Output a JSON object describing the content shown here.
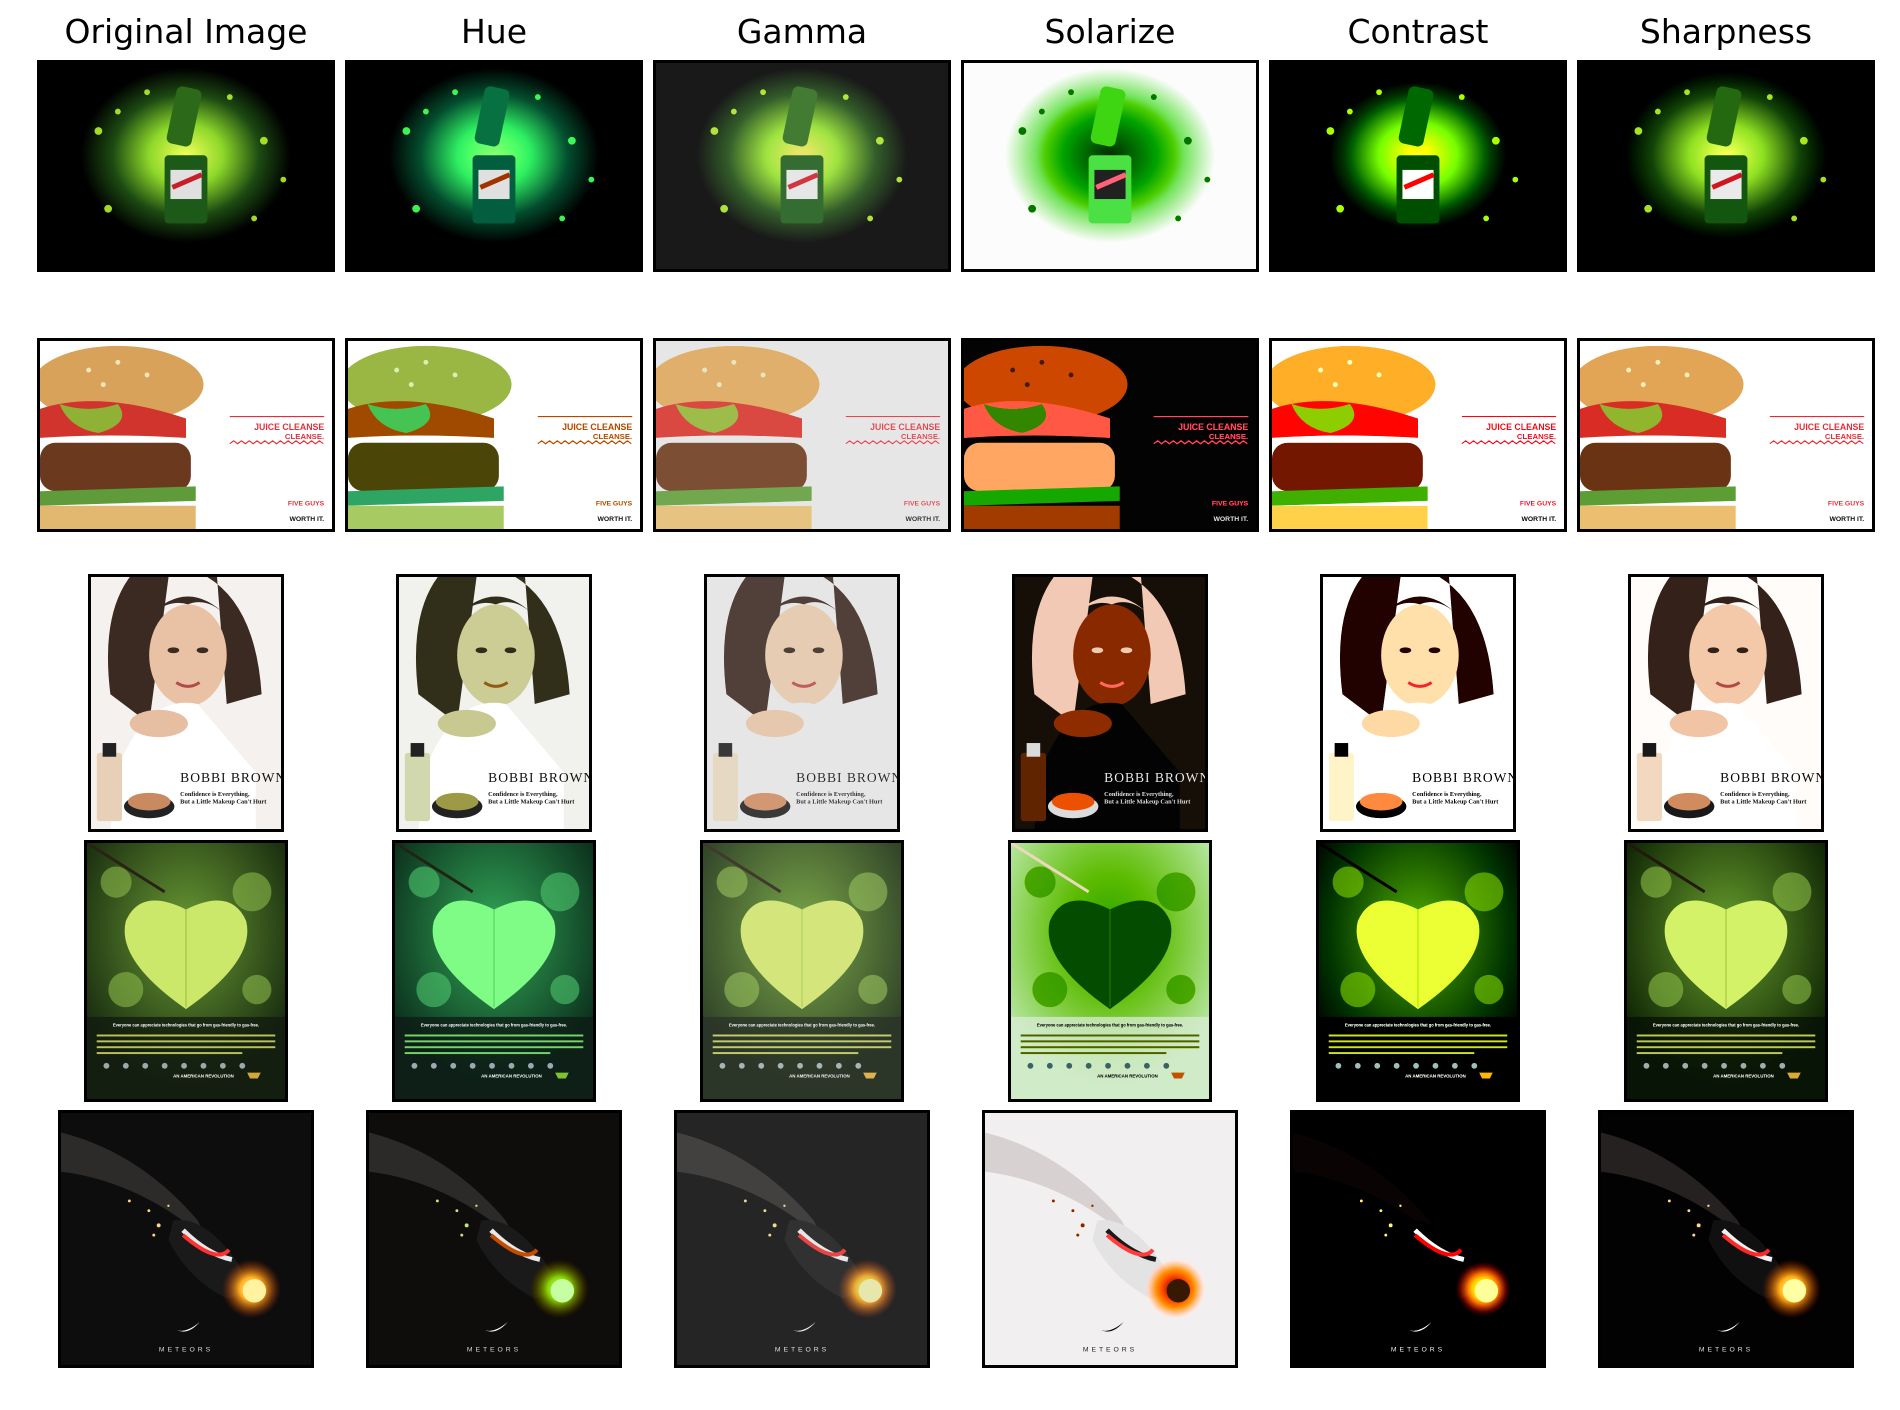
{
  "columns": [
    "Original Image",
    "Hue",
    "Gamma",
    "Solarize",
    "Contrast",
    "Sharpness"
  ],
  "rows": [
    {
      "name": "soda-splash-ad"
    },
    {
      "name": "burger-ad",
      "texts": [
        "JUICE CLEANSE",
        "CLEANSE.",
        "FIVE GUYS",
        "WORTH IT."
      ]
    },
    {
      "name": "cosmetics-ad",
      "texts": [
        "BOBBI BROWN",
        "Confidence is Everything,",
        "But a Little Makeup Can't Hurt"
      ]
    },
    {
      "name": "leaf-ad",
      "texts": [
        "Everyone can appreciate technologies that go from gas-friendly to gas-free.",
        "AN AMERICAN REVOLUTION"
      ]
    },
    {
      "name": "sneaker-meteor-ad",
      "texts": [
        "METEORS"
      ]
    }
  ]
}
